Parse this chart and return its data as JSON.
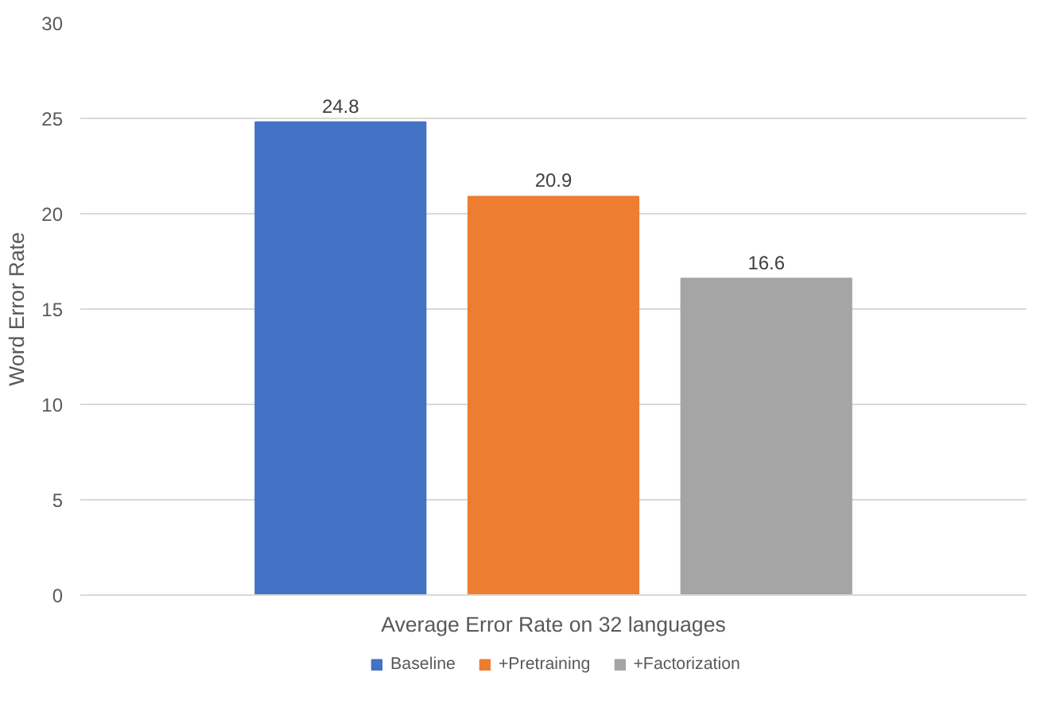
{
  "chart_data": {
    "type": "bar",
    "categories": [
      "Average Error Rate on 32 languages"
    ],
    "ylabel": "Word Error Rate",
    "series": [
      {
        "name": "Baseline",
        "color": "#4472c4",
        "values": [
          24.8
        ]
      },
      {
        "name": "+Pretraining",
        "color": "#ed7d31",
        "values": [
          20.9
        ]
      },
      {
        "name": "+Factorization",
        "color": "#a5a5a5",
        "values": [
          16.6
        ]
      }
    ],
    "ylim": [
      0,
      30
    ],
    "yticks": [
      0,
      5,
      10,
      15,
      20,
      25,
      30
    ],
    "grid": "y",
    "legend": "bottom",
    "data_labels": true
  }
}
